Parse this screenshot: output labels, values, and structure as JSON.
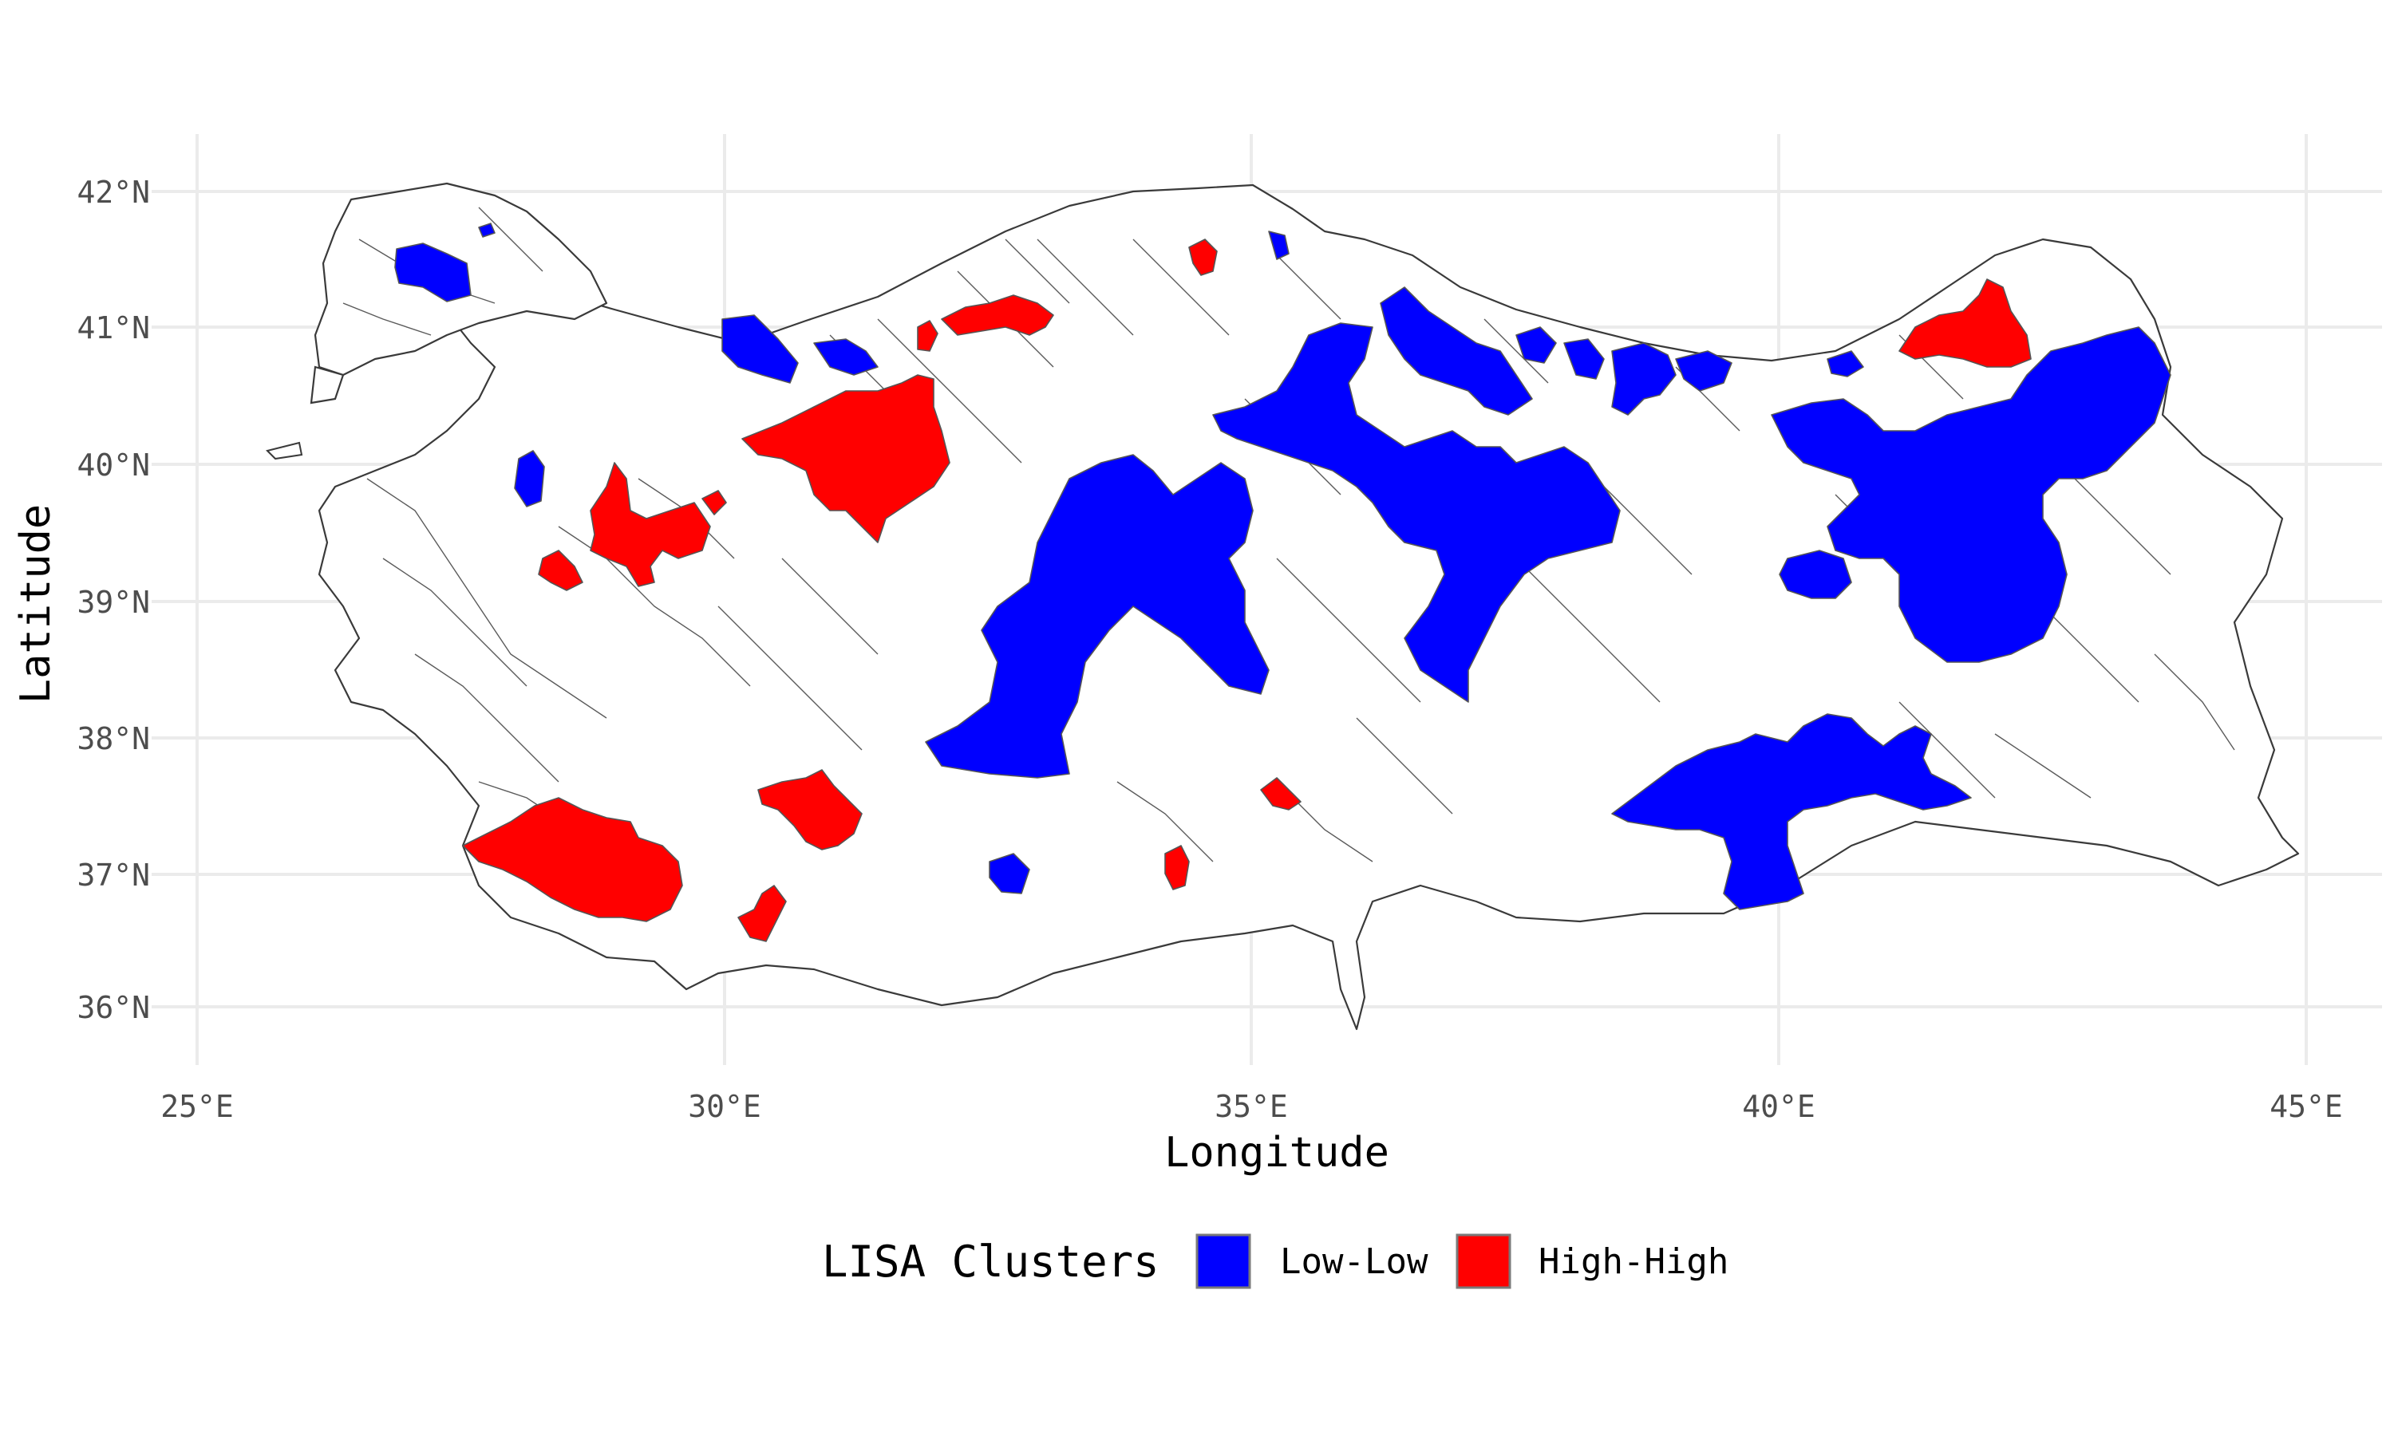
{
  "map": {
    "x_label": "Longitude",
    "y_label": "Latitude",
    "x_ticks": [
      "25°E",
      "30°E",
      "35°E",
      "40°E",
      "45°E"
    ],
    "y_ticks": [
      "42°N",
      "41°N",
      "40°N",
      "39°N",
      "38°N",
      "37°N",
      "36°N"
    ],
    "lon_range": [
      24.7,
      45.7
    ],
    "lat_range": [
      35.6,
      42.4
    ],
    "colors": {
      "low_low": "#0000ff",
      "high_high": "#ff0000",
      "not_significant": "#ffffff",
      "border": "#3a3a3a",
      "grid": "#ebebeb"
    }
  },
  "legend": {
    "title": "LISA Clusters",
    "items": [
      {
        "label": "Low-Low",
        "color": "#0000ff"
      },
      {
        "label": "High-High",
        "color": "#ff0000"
      }
    ],
    "position": "bottom"
  }
}
